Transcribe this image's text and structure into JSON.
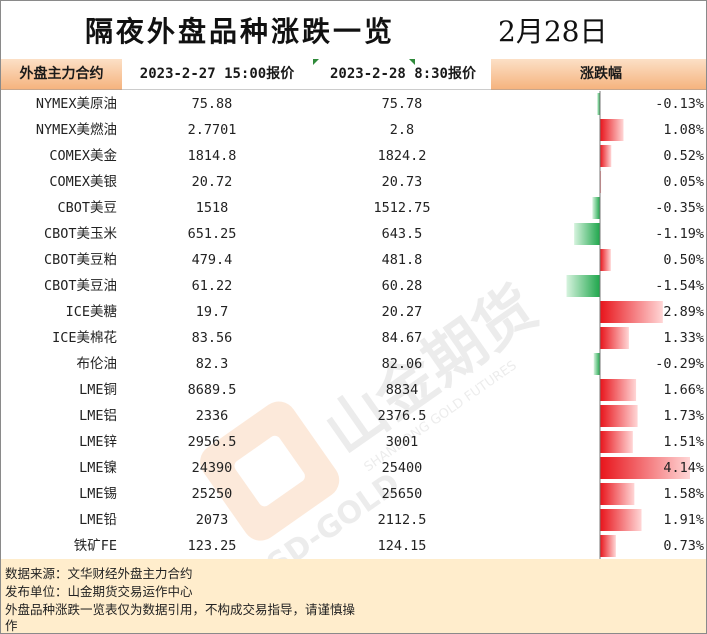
{
  "page": {
    "title": "隔夜外盘品种涨跌一览",
    "date": "2月28日"
  },
  "table": {
    "headers": {
      "name": "外盘主力合约",
      "price1": "2023-2-27 15:00报价",
      "price2": "2023-2-28 8:30报价",
      "change": "涨跌幅"
    }
  },
  "chart_data": {
    "type": "bar",
    "orientation": "horizontal",
    "columns": [
      "外盘主力合约",
      "2023-2-27 15:00报价",
      "2023-2-28 8:30报价",
      "涨跌幅"
    ],
    "categories": [
      "NYMEX美原油",
      "NYMEX美燃油",
      "COMEX美金",
      "COMEX美银",
      "CBOT美豆",
      "CBOT美玉米",
      "CBOT美豆粕",
      "CBOT美豆油",
      "ICE美糖",
      "ICE美棉花",
      "布伦油",
      "LME铜",
      "LME铝",
      "LME锌",
      "LME镍",
      "LME锡",
      "LME铅",
      "铁矿FE"
    ],
    "price_prev": [
      "75.88",
      "2.7701",
      "1814.8",
      "20.72",
      "1518",
      "651.25",
      "479.4",
      "61.22",
      "19.7",
      "83.56",
      "82.3",
      "8689.5",
      "2336",
      "2956.5",
      "24390",
      "25250",
      "2073",
      "123.25"
    ],
    "price_curr": [
      "75.78",
      "2.8",
      "1824.2",
      "20.73",
      "1512.75",
      "643.5",
      "481.8",
      "60.28",
      "20.27",
      "84.67",
      "82.06",
      "8834",
      "2376.5",
      "3001",
      "25400",
      "25650",
      "2112.5",
      "124.15"
    ],
    "change_labels": [
      "-0.13%",
      "1.08%",
      "0.52%",
      "0.05%",
      "-0.35%",
      "-1.19%",
      "0.50%",
      "-1.54%",
      "2.89%",
      "1.33%",
      "-0.29%",
      "1.66%",
      "1.73%",
      "1.51%",
      "4.14%",
      "1.58%",
      "1.91%",
      "0.73%"
    ],
    "values": [
      -0.13,
      1.08,
      0.52,
      0.05,
      -0.35,
      -1.19,
      0.5,
      -1.54,
      2.89,
      1.33,
      -0.29,
      1.66,
      1.73,
      1.51,
      4.14,
      1.58,
      1.91,
      0.73
    ],
    "colors": {
      "positive": "#e8141b",
      "negative": "#1ea64b"
    }
  },
  "footer": {
    "line1": "数据来源：文华财经外盘主力合约",
    "line2": "发布单位：山金期货交易运作中心",
    "line3a": "外盘品种涨跌一览表仅为数据引用，不构成交易指导，请谨慎操",
    "line3b": "作"
  },
  "watermark": {
    "brand": "山金期货",
    "text_en": "SHANDONG GOLD FUTURES",
    "text_sd": "SD-GOLD"
  },
  "colors": {
    "header_orange": "#f8c49b",
    "footer_bg": "#ffedcc"
  }
}
